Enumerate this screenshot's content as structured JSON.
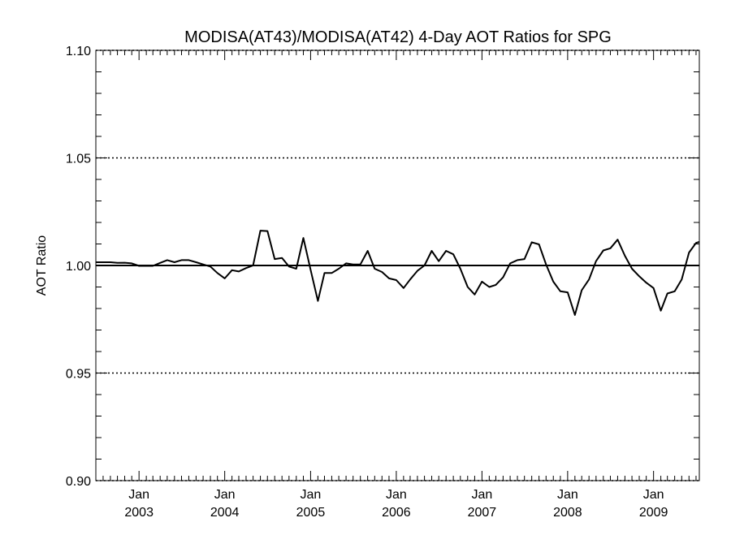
{
  "chart_data": {
    "type": "line",
    "title": "MODISA(AT43)/MODISA(AT42) 4-Day AOT Ratios for SPG",
    "xlabel": "",
    "ylabel": "AOT Ratio",
    "ylim": [
      0.9,
      1.1
    ],
    "xlim": [
      "2002-07-01",
      "2009-07-15"
    ],
    "grid": "dotted horizontal lines at major y ticks",
    "reference_line": 1.0,
    "y_ticks": [
      {
        "value": 0.9,
        "label": "0.90"
      },
      {
        "value": 0.95,
        "label": "0.95"
      },
      {
        "value": 1.0,
        "label": "1.00"
      },
      {
        "value": 1.05,
        "label": "1.05"
      },
      {
        "value": 1.1,
        "label": "1.10"
      }
    ],
    "x_ticks": [
      {
        "date": "2003-01-01",
        "month": "Jan",
        "year": "2003"
      },
      {
        "date": "2004-01-01",
        "month": "Jan",
        "year": "2004"
      },
      {
        "date": "2005-01-01",
        "month": "Jan",
        "year": "2005"
      },
      {
        "date": "2006-01-01",
        "month": "Jan",
        "year": "2006"
      },
      {
        "date": "2007-01-01",
        "month": "Jan",
        "year": "2007"
      },
      {
        "date": "2008-01-01",
        "month": "Jan",
        "year": "2008"
      },
      {
        "date": "2009-01-01",
        "month": "Jan",
        "year": "2009"
      }
    ],
    "series": [
      {
        "x": [
          "2002-07-01",
          "2002-08-01",
          "2002-09-01",
          "2002-10-01",
          "2002-11-01",
          "2002-12-01",
          "2003-01-01",
          "2003-02-01",
          "2003-03-01",
          "2003-04-01",
          "2003-05-01",
          "2003-06-01",
          "2003-07-01",
          "2003-08-01",
          "2003-09-01",
          "2003-10-01",
          "2003-11-01",
          "2003-12-01",
          "2004-01-01",
          "2004-02-01",
          "2004-03-01",
          "2004-04-01",
          "2004-05-01",
          "2004-06-01",
          "2004-07-01",
          "2004-08-01",
          "2004-09-01",
          "2004-10-01",
          "2004-11-01",
          "2004-12-01",
          "2005-01-01",
          "2005-02-01",
          "2005-03-01",
          "2005-04-01",
          "2005-05-01",
          "2005-06-01",
          "2005-07-01",
          "2005-08-01",
          "2005-09-01",
          "2005-10-01",
          "2005-11-01",
          "2005-12-01",
          "2006-01-01",
          "2006-02-01",
          "2006-03-01",
          "2006-04-01",
          "2006-05-01",
          "2006-06-01",
          "2006-07-01",
          "2006-08-01",
          "2006-09-01",
          "2006-10-01",
          "2006-11-01",
          "2006-12-01",
          "2007-01-01",
          "2007-02-01",
          "2007-03-01",
          "2007-04-01",
          "2007-05-01",
          "2007-06-01",
          "2007-07-01",
          "2007-08-01",
          "2007-09-01",
          "2007-10-01",
          "2007-11-01",
          "2007-12-01",
          "2008-01-01",
          "2008-02-01",
          "2008-03-01",
          "2008-04-01",
          "2008-05-01",
          "2008-06-01",
          "2008-07-01",
          "2008-08-01",
          "2008-09-01",
          "2008-10-01",
          "2008-11-01",
          "2008-12-01",
          "2009-01-01",
          "2009-02-01",
          "2009-03-01",
          "2009-04-01",
          "2009-05-01",
          "2009-06-01",
          "2009-07-01",
          "2009-07-15"
        ],
        "y": [
          1.0015,
          1.0015,
          1.0015,
          1.0012,
          1.0013,
          1.001,
          0.9998,
          0.9998,
          0.9998,
          1.0012,
          1.0025,
          1.0015,
          1.0025,
          1.0025,
          1.0015,
          1.0005,
          0.9995,
          0.9965,
          0.994,
          0.9978,
          0.9972,
          0.9988,
          1.0,
          1.0162,
          1.016,
          1.003,
          1.0035,
          0.9995,
          0.9985,
          1.0128,
          0.998,
          0.9835,
          0.9965,
          0.9965,
          0.9985,
          1.001,
          1.0005,
          1.0005,
          1.0068,
          0.9985,
          0.997,
          0.994,
          0.9932,
          0.9895,
          0.9935,
          0.9975,
          1.0,
          1.0068,
          1.002,
          1.0068,
          1.0052,
          0.9985,
          0.99,
          0.9865,
          0.9925,
          0.99,
          0.991,
          0.9945,
          1.001,
          1.0025,
          1.003,
          1.0108,
          1.0098,
          1.0005,
          0.9925,
          0.988,
          0.9875,
          0.977,
          0.9885,
          0.9935,
          1.002,
          1.007,
          1.008,
          1.012,
          1.0045,
          0.9985,
          0.995,
          0.992,
          0.9895,
          0.979,
          0.987,
          0.988,
          0.9935,
          1.006,
          1.0105,
          1.011
        ]
      }
    ]
  }
}
